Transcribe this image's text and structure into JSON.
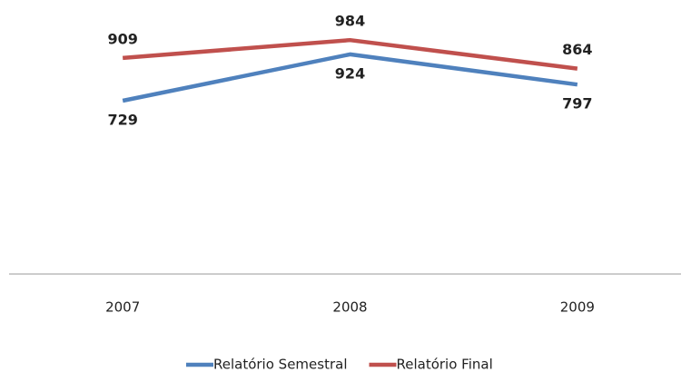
{
  "chart_data": {
    "type": "line",
    "categories": [
      "2007",
      "2008",
      "2009"
    ],
    "series": [
      {
        "name": "Relatório Semestral",
        "color": "#4f81bd",
        "values": [
          729,
          924,
          797
        ]
      },
      {
        "name": "Relatório Final",
        "color": "#c0504d",
        "values": [
          909,
          984,
          864
        ]
      }
    ],
    "ylim": [
      0,
      1000
    ],
    "legend": "bottom"
  }
}
